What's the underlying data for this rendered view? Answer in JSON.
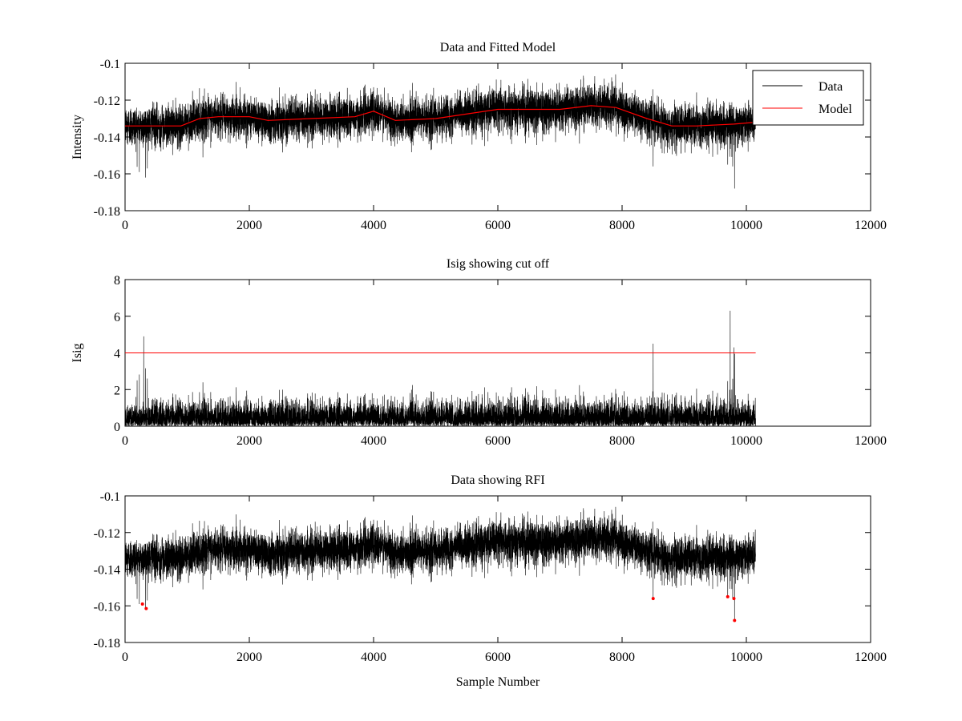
{
  "chart_data": [
    {
      "type": "line",
      "title": "Data and Fitted Model",
      "xlabel": "",
      "ylabel": "Intensity",
      "xlim": [
        0,
        12000
      ],
      "ylim": [
        -0.18,
        -0.1
      ],
      "xticks": [
        0,
        2000,
        4000,
        6000,
        8000,
        10000,
        12000
      ],
      "xtick_labels": [
        "0",
        "2000",
        "4000",
        "6000",
        "8000",
        "10000",
        "12000"
      ],
      "yticks": [
        -0.1,
        -0.12,
        -0.14,
        -0.16,
        -0.18
      ],
      "ytick_labels": [
        "-0.1",
        "-0.12",
        "-0.14",
        "-0.16",
        "-0.18"
      ],
      "legend": {
        "position": "top-right",
        "entries": [
          "Data",
          "Model"
        ]
      },
      "series": [
        {
          "name": "Data",
          "color": "#000000",
          "x_range": [
            0,
            10150
          ],
          "noise_sd": 0.0055,
          "min_values": [
            {
              "x": 230,
              "y": -0.159
            },
            {
              "x": 330,
              "y": -0.162
            },
            {
              "x": 8500,
              "y": -0.156
            },
            {
              "x": 9700,
              "y": -0.155
            },
            {
              "x": 9780,
              "y": -0.156
            },
            {
              "x": 9810,
              "y": -0.168
            }
          ],
          "max_values": [
            {
              "x": 6050,
              "y": -0.109
            },
            {
              "x": 7380,
              "y": -0.108
            },
            {
              "x": 7560,
              "y": -0.107
            },
            {
              "x": 1850,
              "y": -0.113
            },
            {
              "x": 4000,
              "y": -0.113
            }
          ]
        },
        {
          "name": "Model",
          "color": "#ff0000",
          "x": [
            0,
            900,
            1200,
            1500,
            2000,
            2300,
            3000,
            3700,
            4000,
            4350,
            5000,
            6000,
            6500,
            7000,
            7500,
            7900,
            8400,
            8800,
            9200,
            9800,
            10150
          ],
          "values": [
            -0.134,
            -0.134,
            -0.13,
            -0.129,
            -0.129,
            -0.131,
            -0.13,
            -0.129,
            -0.126,
            -0.131,
            -0.13,
            -0.125,
            -0.125,
            -0.125,
            -0.123,
            -0.124,
            -0.13,
            -0.134,
            -0.134,
            -0.133,
            -0.132
          ]
        }
      ]
    },
    {
      "type": "line",
      "title": "Isig showing cut off",
      "xlabel": "",
      "ylabel": "Isig",
      "xlim": [
        0,
        12000
      ],
      "ylim": [
        0,
        8
      ],
      "xticks": [
        0,
        2000,
        4000,
        6000,
        8000,
        10000,
        12000
      ],
      "xtick_labels": [
        "0",
        "2000",
        "4000",
        "6000",
        "8000",
        "10000",
        "12000"
      ],
      "yticks": [
        0,
        2,
        4,
        6,
        8
      ],
      "ytick_labels": [
        "0",
        "2",
        "4",
        "6",
        "8"
      ],
      "series": [
        {
          "name": "Isig",
          "color": "#000000",
          "x_range": [
            0,
            10150
          ],
          "max_values": [
            {
              "x": 300,
              "y": 4.9
            },
            {
              "x": 8500,
              "y": 4.5
            },
            {
              "x": 9740,
              "y": 6.3
            },
            {
              "x": 9800,
              "y": 4.3
            }
          ]
        },
        {
          "name": "cut off",
          "color": "#ff0000",
          "x": [
            0,
            10150
          ],
          "values": [
            4,
            4
          ]
        }
      ]
    },
    {
      "type": "scatter",
      "title": "Data showing RFI",
      "xlabel": "Sample Number",
      "ylabel": "",
      "xlim": [
        0,
        12000
      ],
      "ylim": [
        -0.18,
        -0.1
      ],
      "xticks": [
        0,
        2000,
        4000,
        6000,
        8000,
        10000,
        12000
      ],
      "xtick_labels": [
        "0",
        "2000",
        "4000",
        "6000",
        "8000",
        "10000",
        "12000"
      ],
      "yticks": [
        -0.1,
        -0.12,
        -0.14,
        -0.16,
        -0.18
      ],
      "ytick_labels": [
        "-0.1",
        "-0.12",
        "-0.14",
        "-0.16",
        "-0.18"
      ],
      "series": [
        {
          "name": "Data",
          "color": "#000000",
          "x_range": [
            0,
            10150
          ]
        },
        {
          "name": "RFI",
          "color": "#ff0000",
          "x": [
            280,
            340,
            8500,
            9700,
            9800,
            9810
          ],
          "values": [
            -0.159,
            -0.1615,
            -0.156,
            -0.155,
            -0.156,
            -0.168
          ]
        }
      ]
    }
  ]
}
